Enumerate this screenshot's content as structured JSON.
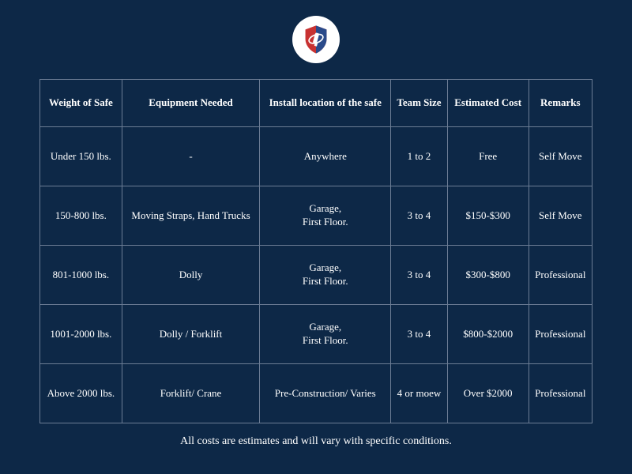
{
  "colors": {
    "background": "#0d2847",
    "border": "#6b7c94",
    "text": "#ffffff",
    "logo_bg": "#ffffff",
    "shield_red": "#c83232",
    "shield_blue": "#2a4a8a"
  },
  "table": {
    "columns": [
      "Weight of Safe",
      "Equipment Needed",
      "Install location of the safe",
      "Team Size",
      "Estimated Cost",
      "Remarks"
    ],
    "rows": [
      [
        "Under 150 lbs.",
        "-",
        "Anywhere",
        "1 to 2",
        "Free",
        "Self Move"
      ],
      [
        "150-800 lbs.",
        "Moving Straps, Hand Trucks",
        "Garage,\nFirst Floor.",
        "3 to 4",
        "$150-$300",
        "Self Move"
      ],
      [
        "801-1000 lbs.",
        "Dolly",
        "Garage,\nFirst Floor.",
        "3 to 4",
        "$300-$800",
        "Professional"
      ],
      [
        "1001-2000 lbs.",
        "Dolly / Forklift",
        "Garage,\nFirst Floor.",
        "3 to 4",
        "$800-$2000",
        "Professional"
      ],
      [
        "Above 2000 lbs.",
        "Forklift/ Crane",
        "Pre-Construction/ Varies",
        "4 or moew",
        "Over $2000",
        "Professional"
      ]
    ]
  },
  "footnote": "All costs are estimates and will vary with specific conditions."
}
